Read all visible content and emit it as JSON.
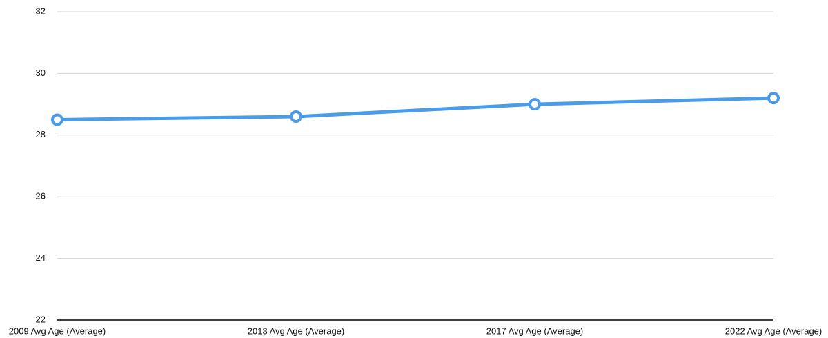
{
  "chart_data": {
    "type": "line",
    "categories": [
      "2009 Avg Age (Average)",
      "2013 Avg Age (Average)",
      "2017 Avg Age (Average)",
      "2022 Avg Age (Average)"
    ],
    "series": [
      {
        "color": "#4a9be8",
        "values": [
          28.5,
          28.6,
          29.0,
          29.2
        ]
      }
    ],
    "ylim": [
      22,
      32
    ],
    "yticks": [
      22,
      24,
      26,
      28,
      30,
      32
    ],
    "grid": true
  }
}
